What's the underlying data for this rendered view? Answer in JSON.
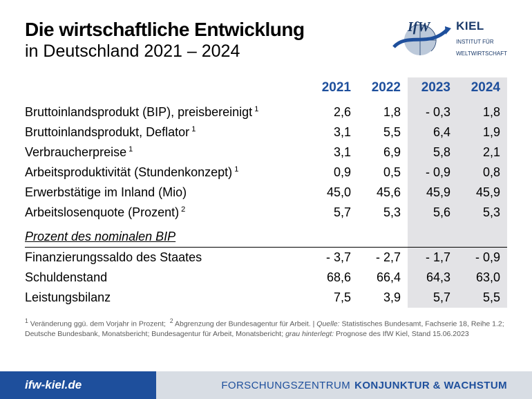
{
  "title_line1": "Die wirtschaftliche Entwicklung",
  "title_line2": "in Deutschland 2021 – 2024",
  "logo": {
    "kiel": "KIEL",
    "subtitle1": "INSTITUT FÜR",
    "subtitle2": "WELTWIRTSCHAFT"
  },
  "colors": {
    "brand_blue": "#1e4f9c",
    "forecast_bg": "#e3e3e6",
    "footer_right_bg": "#d8dde4",
    "text": "#000000"
  },
  "table": {
    "years": [
      "2021",
      "2022",
      "2023",
      "2024"
    ],
    "forecast_cols": [
      false,
      false,
      true,
      true
    ],
    "rows": [
      {
        "label": "Bruttoinlandsprodukt (BIP), preisbereinigt",
        "sup": "1",
        "values": [
          "2,6",
          "1,8",
          "- 0,3",
          "1,8"
        ]
      },
      {
        "label": "Bruttoinlandsprodukt, Deflator",
        "sup": "1",
        "values": [
          "3,1",
          "5,5",
          "6,4",
          "1,9"
        ]
      },
      {
        "label": "Verbraucherpreise",
        "sup": "1",
        "values": [
          "3,1",
          "6,9",
          "5,8",
          "2,1"
        ]
      },
      {
        "label": "Arbeitsproduktivität (Stundenkonzept)",
        "sup": "1",
        "values": [
          "0,9",
          "0,5",
          "- 0,9",
          "0,8"
        ]
      },
      {
        "label": "Erwerbstätige im Inland (Mio)",
        "sup": "",
        "values": [
          "45,0",
          "45,6",
          "45,9",
          "45,9"
        ]
      },
      {
        "label": "Arbeitslosenquote (Prozent)",
        "sup": "2",
        "values": [
          "5,7",
          "5,3",
          "5,6",
          "5,3"
        ]
      }
    ],
    "section_title": "Prozent des nominalen BIP",
    "rows2": [
      {
        "label": "Finanzierungssaldo des Staates",
        "sup": "",
        "values": [
          "- 3,7",
          "- 2,7",
          "- 1,7",
          "- 0,9"
        ]
      },
      {
        "label": "Schuldenstand",
        "sup": "",
        "values": [
          "68,6",
          "66,4",
          "64,3",
          "63,0"
        ]
      },
      {
        "label": "Leistungsbilanz",
        "sup": "",
        "values": [
          "7,5",
          "3,9",
          "5,7",
          "5,5"
        ]
      }
    ]
  },
  "footnotes": {
    "n1": "Veränderung ggü. dem Vorjahr in Prozent;",
    "n2": "Abgrenzung der Bundesagentur für Arbeit.",
    "quelle_label": "Quelle:",
    "quelle": "Statistisches Bundesamt, Fachserie 18, Reihe 1.2; Deutsche Bundesbank, Monatsbericht; Bundesagentur für Arbeit, Monatsbericht;",
    "grau_label": "grau hinterlegt:",
    "grau": "Prognose des IfW Kiel, Stand 15.06.2023"
  },
  "footer": {
    "url": "ifw-kiel.de",
    "right_light": "FORSCHUNGSZENTRUM",
    "right_bold": "KONJUNKTUR & WACHSTUM"
  }
}
